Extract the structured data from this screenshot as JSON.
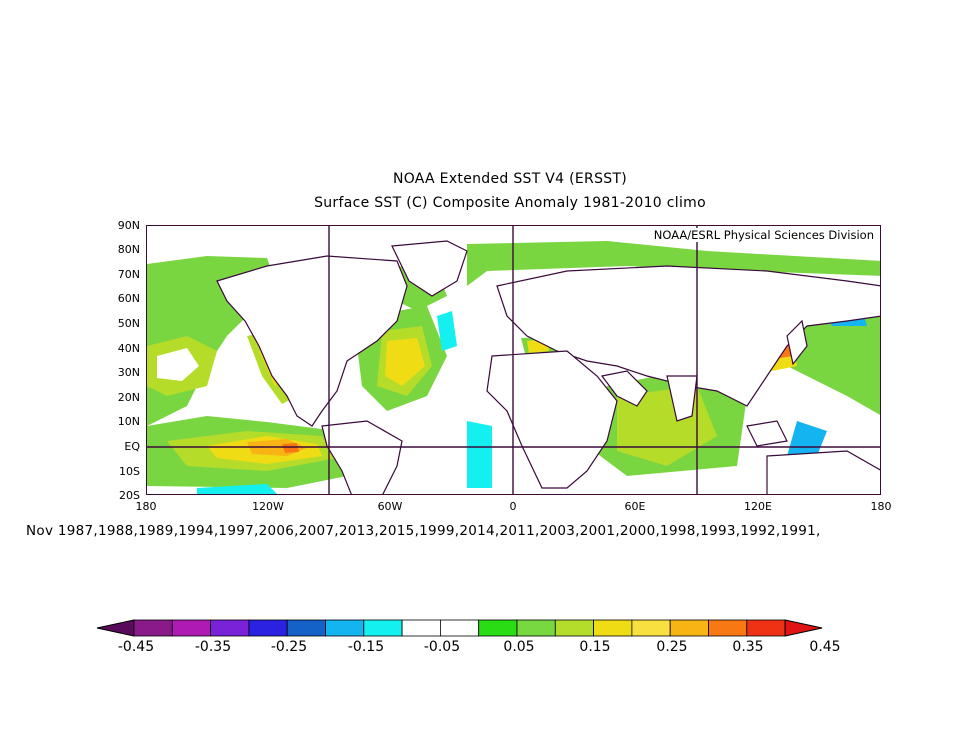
{
  "header": {
    "title": "NOAA Extended SST V4 (ERSST)",
    "subtitle": "Surface SST (C) Composite Anomaly 1981-2010 climo",
    "credit": "NOAA/ESRL Physical Sciences Division"
  },
  "axes": {
    "lat_labels": [
      "90N",
      "80N",
      "70N",
      "60N",
      "50N",
      "40N",
      "30N",
      "20N",
      "10N",
      "EQ",
      "10S",
      "20S"
    ],
    "lon_labels": [
      "180",
      "120W",
      "60W",
      "0",
      "60E",
      "120E",
      "180"
    ]
  },
  "dates_text": "Nov 1987,1988,1989,1994,1997,2006,2007,2013,2015,1999,2014,2011,2003,2001,2000,1998,1993,1992,1991,",
  "colorbar": {
    "colors": [
      "#5a0a5a",
      "#8a1a8a",
      "#b01ab4",
      "#7a22d8",
      "#2a22e0",
      "#1462c8",
      "#14b4f0",
      "#14f0f0",
      "#ffffff",
      "#ffffff",
      "#2adc14",
      "#78d840",
      "#b4dc2a",
      "#f0dc14",
      "#f8e040",
      "#f8b414",
      "#f87814",
      "#f03214",
      "#e01414"
    ],
    "labels": [
      "-0.45",
      "-0.35",
      "-0.25",
      "-0.15",
      "-0.05",
      "0.05",
      "0.15",
      "0.25",
      "0.35",
      "0.45"
    ]
  }
}
